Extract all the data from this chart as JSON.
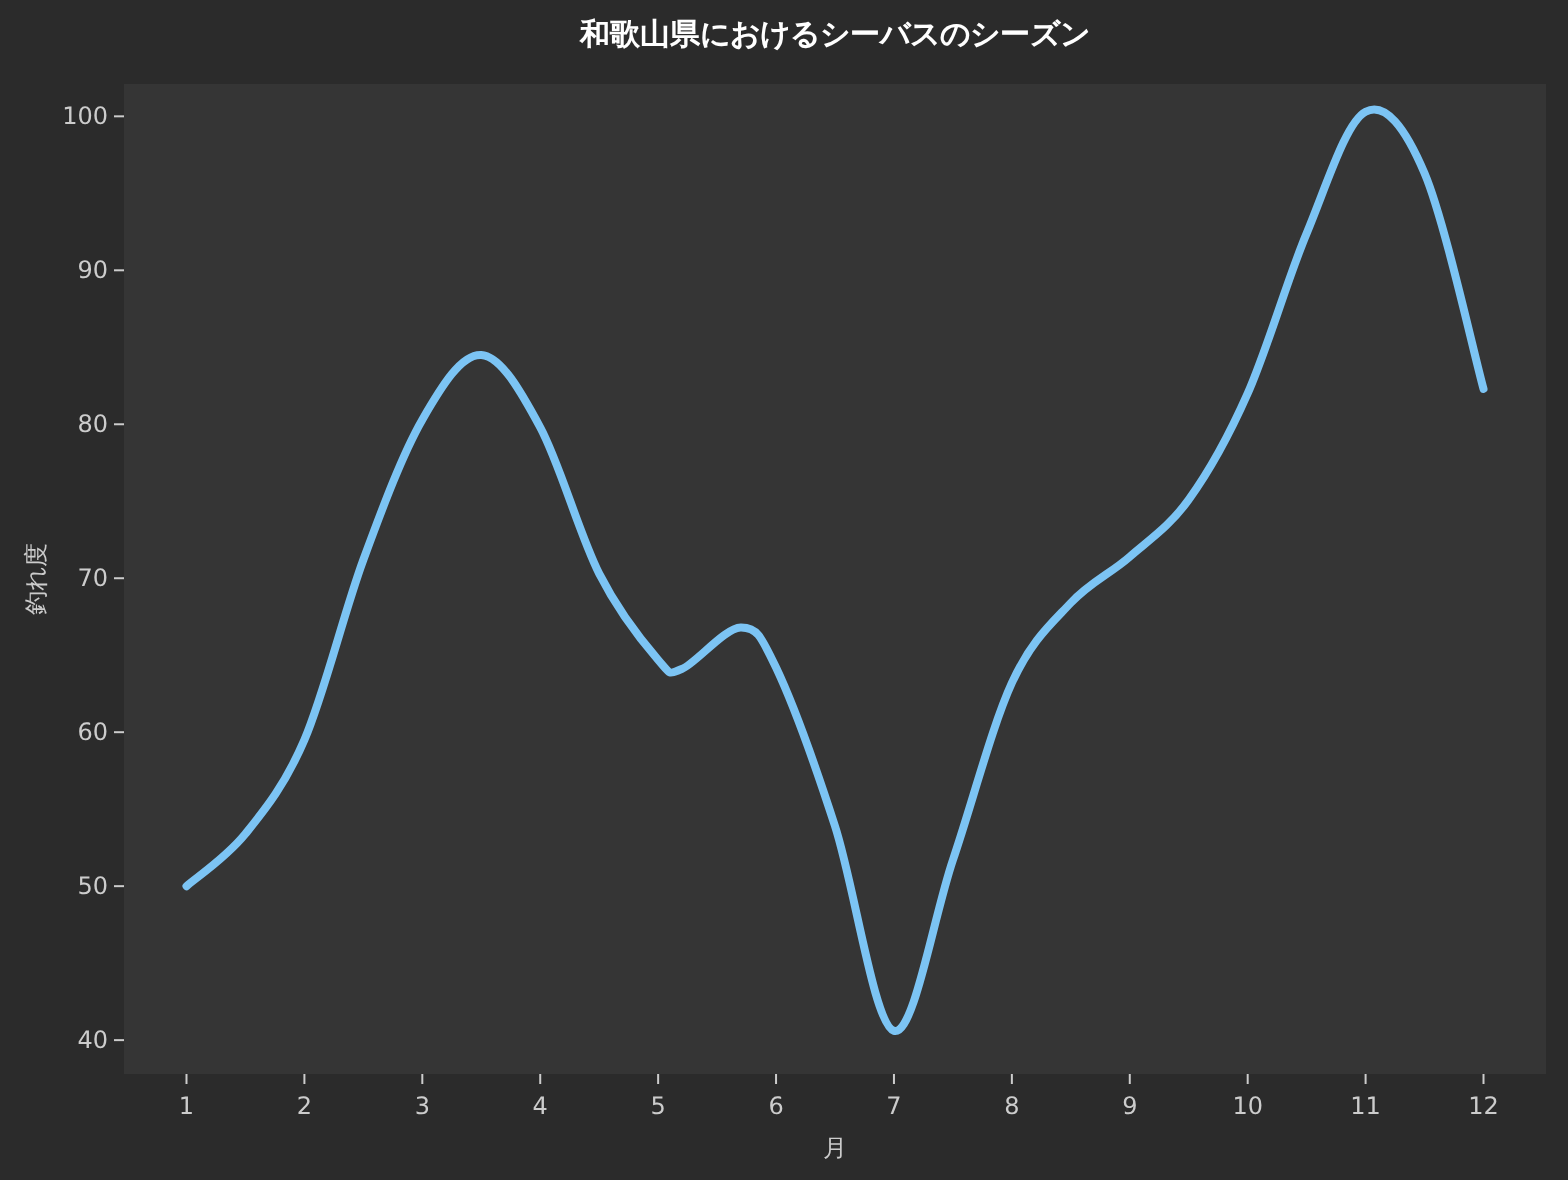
{
  "chart_data": {
    "type": "line",
    "title": "和歌山県におけるシーバスのシーズン",
    "xlabel": "月",
    "ylabel": "釣れ度",
    "x": [
      1,
      1.5,
      2,
      2.5,
      3,
      3.5,
      4,
      4.5,
      5,
      5.2,
      5.7,
      6,
      6.5,
      7,
      7.5,
      8,
      8.5,
      9,
      9.5,
      10,
      10.5,
      11,
      11.5,
      12
    ],
    "series": [
      {
        "color": "#7cc4f4",
        "values": [
          50,
          53.4,
          59.5,
          71.2,
          80.3,
          84.5,
          79.8,
          70.3,
          64.7,
          64.1,
          66.8,
          64.2,
          53.9,
          40.6,
          51.7,
          63.2,
          68.4,
          71.4,
          75.1,
          82,
          92.4,
          100.3,
          96.3,
          82.3
        ]
      }
    ],
    "xlim": [
      0.47,
      12.53
    ],
    "ylim": [
      37.8,
      102.1
    ],
    "xticks": [
      1,
      2,
      3,
      4,
      5,
      6,
      7,
      8,
      9,
      10,
      11,
      12
    ],
    "yticks": [
      40,
      50,
      60,
      70,
      80,
      90,
      100
    ],
    "grid": false,
    "marker": "none",
    "line_style": "solid"
  }
}
